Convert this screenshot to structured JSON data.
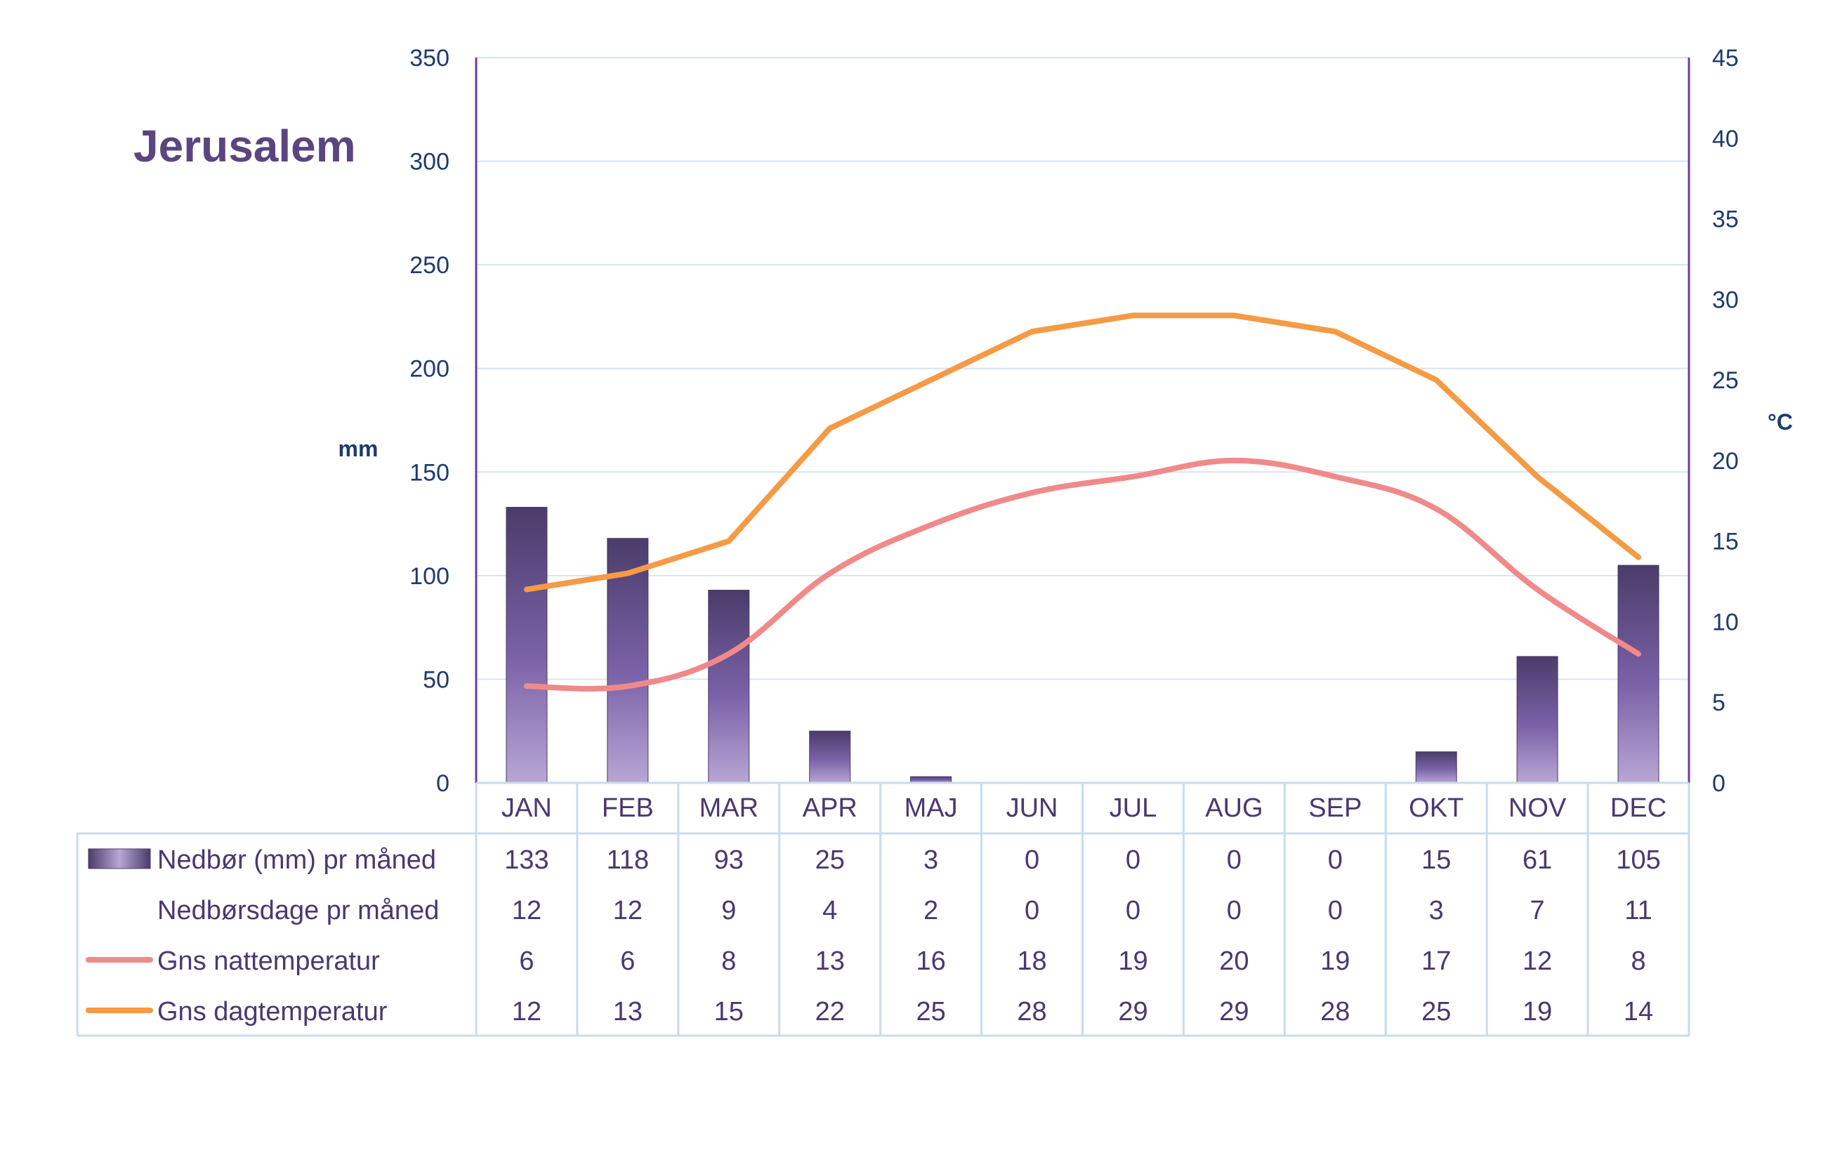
{
  "colors": {
    "precip_dark": "#4a3c6a",
    "precip_mid": "#7b62a8",
    "precip_light": "#b8a6d4",
    "night_temp": "#f08a8a",
    "day_temp": "#f59a45",
    "axis_line": "#6a3d9a",
    "grid": "#d6e4f0",
    "table_border": "#c9dcec",
    "title": "#5b4580",
    "tick_text": "#1f3a6e",
    "table_text": "#4a3870"
  },
  "chart_data": {
    "type": "bar",
    "title": "Jerusalem",
    "ylabel": "mm",
    "y2label": "°C",
    "ylim": [
      0,
      350
    ],
    "yticks": [
      0,
      50,
      100,
      150,
      200,
      250,
      300,
      350
    ],
    "y2lim": [
      0,
      45
    ],
    "y2ticks": [
      0,
      5,
      10,
      15,
      20,
      25,
      30,
      35,
      40,
      45
    ],
    "grid": true,
    "categories": [
      "JAN",
      "FEB",
      "MAR",
      "APR",
      "MAJ",
      "JUN",
      "JUL",
      "AUG",
      "SEP",
      "OKT",
      "NOV",
      "DEC"
    ],
    "series": [
      {
        "name": "Nedbør (mm) pr måned",
        "type": "bar",
        "axis": "left",
        "values": [
          133,
          118,
          93,
          25,
          3,
          0,
          0,
          0,
          0,
          15,
          61,
          105
        ]
      },
      {
        "name": "Nedbørsdage pr måned",
        "type": "table-only",
        "values": [
          12,
          12,
          9,
          4,
          2,
          0,
          0,
          0,
          0,
          3,
          7,
          11
        ]
      },
      {
        "name": "Gns nattemperatur",
        "type": "line",
        "axis": "right",
        "values": [
          6,
          6,
          8,
          13,
          16,
          18,
          19,
          20,
          19,
          17,
          12,
          8
        ]
      },
      {
        "name": "Gns dagtemperatur",
        "type": "line",
        "axis": "right",
        "values": [
          12,
          13,
          15,
          22,
          25,
          28,
          29,
          29,
          28,
          25,
          19,
          14
        ]
      }
    ]
  }
}
